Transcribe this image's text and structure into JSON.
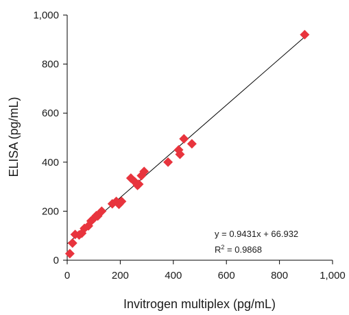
{
  "chart_data": {
    "type": "scatter",
    "title": "",
    "xlabel": "Invitrogen multiplex (pg/mL)",
    "ylabel": "ELISA (pg/mL)",
    "xlim": [
      0,
      1000
    ],
    "ylim": [
      0,
      1000
    ],
    "x_ticks": [
      0,
      200,
      400,
      600,
      800,
      1000
    ],
    "y_ticks": [
      0,
      200,
      400,
      600,
      800,
      1000
    ],
    "x_tick_labels": [
      "0",
      "200",
      "400",
      "600",
      "800",
      "1,000"
    ],
    "y_tick_labels": [
      "0",
      "200",
      "400",
      "600",
      "800",
      "1,000"
    ],
    "grid": false,
    "marker": "diamond",
    "marker_color": "#e8343d",
    "series": [
      {
        "points": [
          [
            10,
            27
          ],
          [
            20,
            70
          ],
          [
            30,
            105
          ],
          [
            45,
            103
          ],
          [
            55,
            110
          ],
          [
            65,
            130
          ],
          [
            80,
            140
          ],
          [
            90,
            160
          ],
          [
            100,
            170
          ],
          [
            110,
            182
          ],
          [
            115,
            180
          ],
          [
            130,
            200
          ],
          [
            170,
            230
          ],
          [
            185,
            240
          ],
          [
            195,
            228
          ],
          [
            205,
            240
          ],
          [
            240,
            335
          ],
          [
            255,
            320
          ],
          [
            265,
            305
          ],
          [
            270,
            310
          ],
          [
            280,
            345
          ],
          [
            290,
            362
          ],
          [
            380,
            400
          ],
          [
            420,
            450
          ],
          [
            425,
            432
          ],
          [
            440,
            495
          ],
          [
            470,
            475
          ],
          [
            895,
            920
          ]
        ]
      }
    ],
    "trendline": {
      "slope": 0.9431,
      "intercept": 66.932,
      "x_range": [
        0,
        895
      ],
      "color": "#000000"
    },
    "annotations": {
      "equation": "y = 0.9431x + 66.932",
      "r_squared_label": "R",
      "r_squared_sup": "2",
      "r_squared_value": " = 0.9868"
    }
  }
}
